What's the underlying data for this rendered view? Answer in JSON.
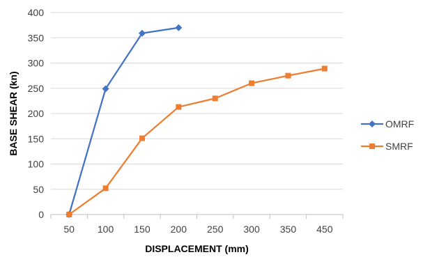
{
  "chart_data": {
    "type": "line",
    "title": "",
    "xlabel": "DISPLACEMENT (mm)",
    "ylabel": "BASE SHEAR (kn)",
    "categories": [
      "50",
      "100",
      "150",
      "200",
      "250",
      "300",
      "350",
      "450"
    ],
    "ylim": [
      0,
      400
    ],
    "yticks": [
      "0",
      "50",
      "100",
      "150",
      "200",
      "250",
      "300",
      "350",
      "400"
    ],
    "grid": true,
    "legend_position": "right",
    "series": [
      {
        "name": "OMRF",
        "marker": "diamond",
        "color": "#4472C4",
        "values": [
          0,
          249,
          359,
          370,
          null,
          null,
          null,
          null
        ]
      },
      {
        "name": "SMRF",
        "marker": "square",
        "color": "#ED7D31",
        "values": [
          0,
          52,
          151,
          213,
          230,
          260,
          275,
          289
        ]
      }
    ]
  }
}
